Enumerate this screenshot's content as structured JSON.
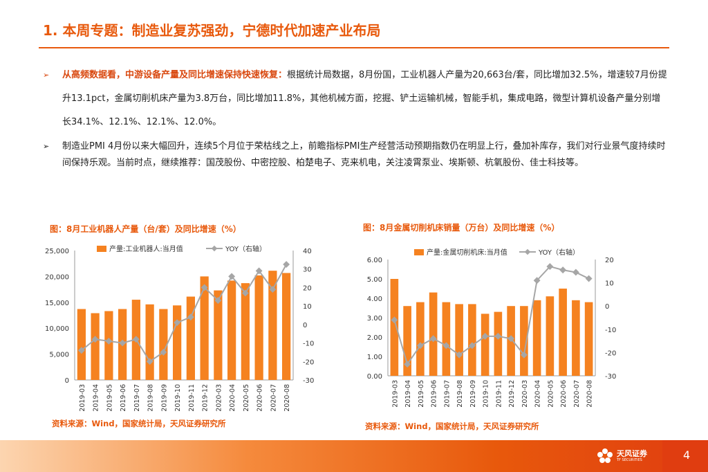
{
  "header": {
    "title": "1. 本周专题：制造业复苏强劲，宁德时代加速产业布局"
  },
  "bullets": {
    "marker": "➢",
    "b1_highlight": "从高频数据看，中游设备产量及同比增速保持快速恢复：",
    "b1_text": "根据统计局数据，8月份国，工业机器人产量为20,663台/套，同比增加32.5%，增速较7月份提升13.1pct，金属切削机床产量为3.8万台，同比增加11.8%，其他机械方面，挖掘、铲土运输机械，智能手机，集成电路，微型计算机设备产量分别增长34.1%、12.1%、12.1%、12.0%。",
    "b2_text": "制造业PMI 4月份以来大幅回升，连续5个月位于荣枯线之上，前瞻指标PMI生产经营活动预期指数仍在明显上行，叠加补库存，我们对行业景气度持续时间保持乐观。当前时点，继续推荐：国茂股份、中密控股、柏楚电子、克来机电，关注凌霄泵业、埃斯顿、杭氧股份、佳士科技等。"
  },
  "chart_data": [
    {
      "type": "bar",
      "title": "图：8月工业机器人产量（台/套）及同比增速（%）",
      "source": "资料来源：Wind，国家统计局，天风证券研究所",
      "categories": [
        "2019-03",
        "2019-04",
        "2019-05",
        "2019-06",
        "2019-07",
        "2019-08",
        "2019-09",
        "2019-10",
        "2019-11",
        "2019-12",
        "2020-03",
        "2020-04",
        "2020-05",
        "2020-06",
        "2020-07",
        "2020-08"
      ],
      "series": [
        {
          "name": "产量:工业机器人:当月值",
          "type": "bar",
          "axis": "left",
          "color": "#f58220",
          "values": [
            13700,
            12900,
            13300,
            13700,
            15500,
            14600,
            13700,
            14400,
            16100,
            20000,
            17300,
            19200,
            18700,
            20200,
            21100,
            20663
          ]
        },
        {
          "name": "YOY（右轴）",
          "type": "line",
          "axis": "right",
          "color": "#a6a6a6",
          "values": [
            -14,
            -8,
            -9,
            -10,
            -8,
            -20,
            -15,
            1,
            4,
            20,
            13,
            26,
            17,
            29,
            19,
            32.5
          ]
        }
      ],
      "yleft": {
        "range": [
          0,
          25000
        ],
        "ticks": [
          "0",
          "5,000",
          "10,000",
          "15,000",
          "20,000",
          "25,000"
        ]
      },
      "yright": {
        "range": [
          -30,
          40
        ],
        "ticks": [
          "-30",
          "-20",
          "-10",
          "0",
          "10",
          "20",
          "30",
          "40"
        ]
      }
    },
    {
      "type": "bar",
      "title": "图：8月金属切削机床销量（万台）及同比增速（%）",
      "source": "资料来源：Wind，国家统计局，天风证券研究所",
      "categories": [
        "2019-03",
        "2019-04",
        "2019-05",
        "2019-06",
        "2019-07",
        "2019-08",
        "2019-09",
        "2019-10",
        "2019-11",
        "2019-12",
        "2020-03",
        "2020-04",
        "2020-05",
        "2020-06",
        "2020-07",
        "2020-08"
      ],
      "series": [
        {
          "name": "产量:金属切削机床:当月值",
          "type": "bar",
          "axis": "left",
          "color": "#f58220",
          "values": [
            5.0,
            3.6,
            3.8,
            4.3,
            3.8,
            3.7,
            3.7,
            3.2,
            3.3,
            3.6,
            3.6,
            3.9,
            4.1,
            4.5,
            3.9,
            3.8
          ]
        },
        {
          "name": "YOY（右轴）",
          "type": "line",
          "axis": "right",
          "color": "#a6a6a6",
          "values": [
            -6,
            -25,
            -17,
            -14,
            -17,
            -21,
            -17,
            -13,
            -13,
            -14,
            -21,
            11,
            17,
            15.5,
            14.5,
            11.8
          ]
        }
      ],
      "yleft": {
        "range": [
          0,
          6
        ],
        "ticks": [
          "0.00",
          "1.00",
          "2.00",
          "3.00",
          "4.00",
          "5.00",
          "6.00"
        ]
      },
      "yright": {
        "range": [
          -30,
          20
        ],
        "ticks": [
          "-30",
          "-20",
          "-10",
          "0",
          "10",
          "20"
        ]
      }
    }
  ],
  "footer": {
    "logo_cn": "天风证券",
    "logo_en": "TF SECURITIES",
    "page_number": "4"
  }
}
